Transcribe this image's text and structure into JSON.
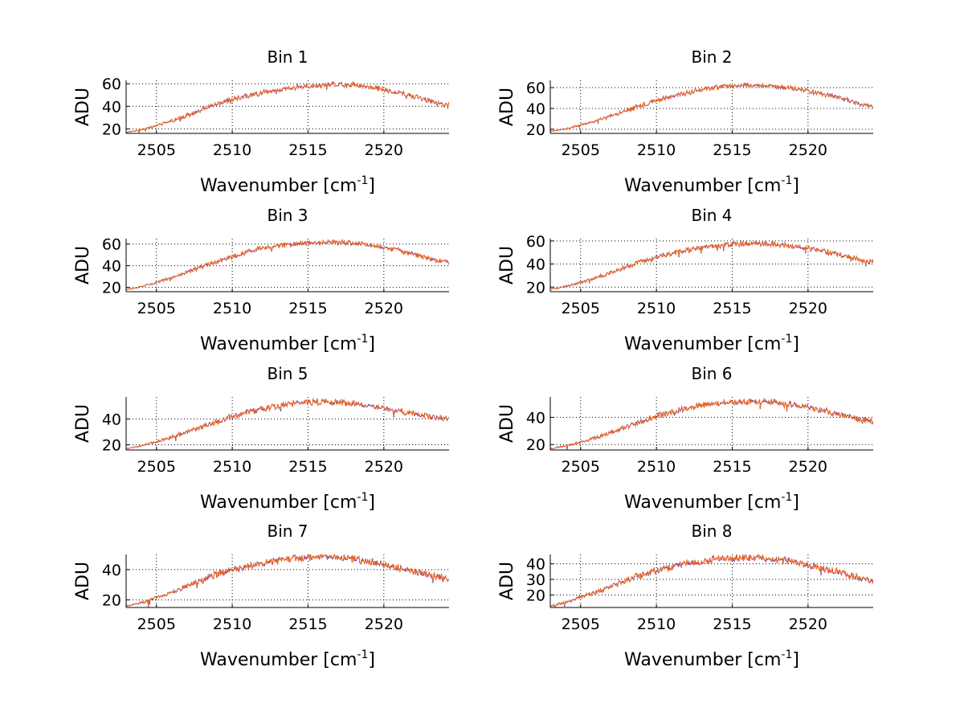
{
  "chart_data": [
    {
      "type": "line",
      "title": "Bin 1",
      "xlabel": "Wavenumber [cm",
      "xlabel_sup": "-1",
      "xlabel_close": "]",
      "ylabel": "ADU",
      "xlim": [
        2503.0,
        2524.3
      ],
      "ylim": [
        16,
        63
      ],
      "xticks": [
        2505,
        2510,
        2515,
        2520
      ],
      "yticks": [
        20,
        40,
        60
      ],
      "grid": true,
      "colors": [
        "#0000ff",
        "#ff6600"
      ],
      "series_shape": {
        "x": [
          2503.0,
          2506.0,
          2509.0,
          2512.0,
          2515.0,
          2518.0,
          2521.0,
          2524.3
        ],
        "y": [
          17,
          27,
          42,
          52,
          58,
          59,
          52,
          41
        ]
      }
    },
    {
      "type": "line",
      "title": "Bin 2",
      "xlabel": "Wavenumber [cm",
      "xlabel_sup": "-1",
      "xlabel_close": "]",
      "ylabel": "ADU",
      "xlim": [
        2503.0,
        2524.3
      ],
      "ylim": [
        16,
        67
      ],
      "xticks": [
        2505,
        2510,
        2515,
        2520
      ],
      "yticks": [
        20,
        40,
        60
      ],
      "grid": true,
      "colors": [
        "#0000ff",
        "#ff6600"
      ],
      "series_shape": {
        "x": [
          2503.0,
          2506.0,
          2509.0,
          2512.0,
          2515.0,
          2518.0,
          2521.0,
          2524.3
        ],
        "y": [
          18,
          28,
          43,
          55,
          62,
          61,
          54,
          42
        ]
      }
    },
    {
      "type": "line",
      "title": "Bin 3",
      "xlabel": "Wavenumber [cm",
      "xlabel_sup": "-1",
      "xlabel_close": "]",
      "ylabel": "ADU",
      "xlim": [
        2503.0,
        2524.3
      ],
      "ylim": [
        16,
        65
      ],
      "xticks": [
        2505,
        2510,
        2515,
        2520
      ],
      "yticks": [
        20,
        40,
        60
      ],
      "grid": true,
      "colors": [
        "#0000ff",
        "#ff6600"
      ],
      "series_shape": {
        "x": [
          2503.0,
          2506.0,
          2509.0,
          2512.0,
          2515.0,
          2518.0,
          2521.0,
          2524.3
        ],
        "y": [
          18,
          29,
          44,
          56,
          61,
          61,
          54,
          43
        ]
      }
    },
    {
      "type": "line",
      "title": "Bin 4",
      "xlabel": "Wavenumber [cm",
      "xlabel_sup": "-1",
      "xlabel_close": "]",
      "ylabel": "ADU",
      "xlim": [
        2503.0,
        2524.3
      ],
      "ylim": [
        16,
        62
      ],
      "xticks": [
        2505,
        2510,
        2515,
        2520
      ],
      "yticks": [
        20,
        40,
        60
      ],
      "grid": true,
      "colors": [
        "#0000ff",
        "#ff6600"
      ],
      "series_shape": {
        "x": [
          2503.0,
          2506.0,
          2509.0,
          2512.0,
          2515.0,
          2518.0,
          2521.0,
          2524.3
        ],
        "y": [
          18,
          28,
          42,
          52,
          57,
          57,
          51,
          42
        ]
      }
    },
    {
      "type": "line",
      "title": "Bin 5",
      "xlabel": "Wavenumber [cm",
      "xlabel_sup": "-1",
      "xlabel_close": "]",
      "ylabel": "ADU",
      "xlim": [
        2503.0,
        2524.3
      ],
      "ylim": [
        16,
        57
      ],
      "xticks": [
        2505,
        2510,
        2515,
        2520
      ],
      "yticks": [
        20,
        40
      ],
      "grid": true,
      "colors": [
        "#0000ff",
        "#ff6600"
      ],
      "series_shape": {
        "x": [
          2503.0,
          2506.0,
          2509.0,
          2512.0,
          2515.0,
          2518.0,
          2521.0,
          2524.3
        ],
        "y": [
          17,
          26,
          38,
          48,
          53,
          52,
          46,
          40
        ]
      }
    },
    {
      "type": "line",
      "title": "Bin 6",
      "xlabel": "Wavenumber [cm",
      "xlabel_sup": "-1",
      "xlabel_close": "]",
      "ylabel": "ADU",
      "xlim": [
        2503.0,
        2524.3
      ],
      "ylim": [
        16,
        55
      ],
      "xticks": [
        2505,
        2510,
        2515,
        2520
      ],
      "yticks": [
        20,
        40
      ],
      "grid": true,
      "colors": [
        "#0000ff",
        "#ff6600"
      ],
      "series_shape": {
        "x": [
          2503.0,
          2506.0,
          2509.0,
          2512.0,
          2515.0,
          2518.0,
          2521.0,
          2524.3
        ],
        "y": [
          17,
          25,
          37,
          47,
          51,
          51,
          45,
          37
        ]
      }
    },
    {
      "type": "line",
      "title": "Bin 7",
      "xlabel": "Wavenumber [cm",
      "xlabel_sup": "-1",
      "xlabel_close": "]",
      "ylabel": "ADU",
      "xlim": [
        2503.0,
        2524.3
      ],
      "ylim": [
        15,
        50
      ],
      "xticks": [
        2505,
        2510,
        2515,
        2520
      ],
      "yticks": [
        20,
        40
      ],
      "grid": true,
      "colors": [
        "#0000ff",
        "#ff6600"
      ],
      "series_shape": {
        "x": [
          2503.0,
          2506.0,
          2509.0,
          2512.0,
          2515.0,
          2518.0,
          2521.0,
          2524.3
        ],
        "y": [
          16,
          25,
          37,
          44,
          48,
          47,
          41,
          34
        ]
      }
    },
    {
      "type": "line",
      "title": "Bin 8",
      "xlabel": "Wavenumber [cm",
      "xlabel_sup": "-1",
      "xlabel_close": "]",
      "ylabel": "ADU",
      "xlim": [
        2503.0,
        2524.3
      ],
      "ylim": [
        12,
        46
      ],
      "xticks": [
        2505,
        2510,
        2515,
        2520
      ],
      "yticks": [
        20,
        30,
        40
      ],
      "grid": true,
      "colors": [
        "#0000ff",
        "#ff6600"
      ],
      "series_shape": {
        "x": [
          2503.0,
          2506.0,
          2509.0,
          2512.0,
          2515.0,
          2518.0,
          2521.0,
          2524.3
        ],
        "y": [
          13,
          22,
          33,
          40,
          44,
          43,
          37,
          29
        ]
      }
    }
  ]
}
